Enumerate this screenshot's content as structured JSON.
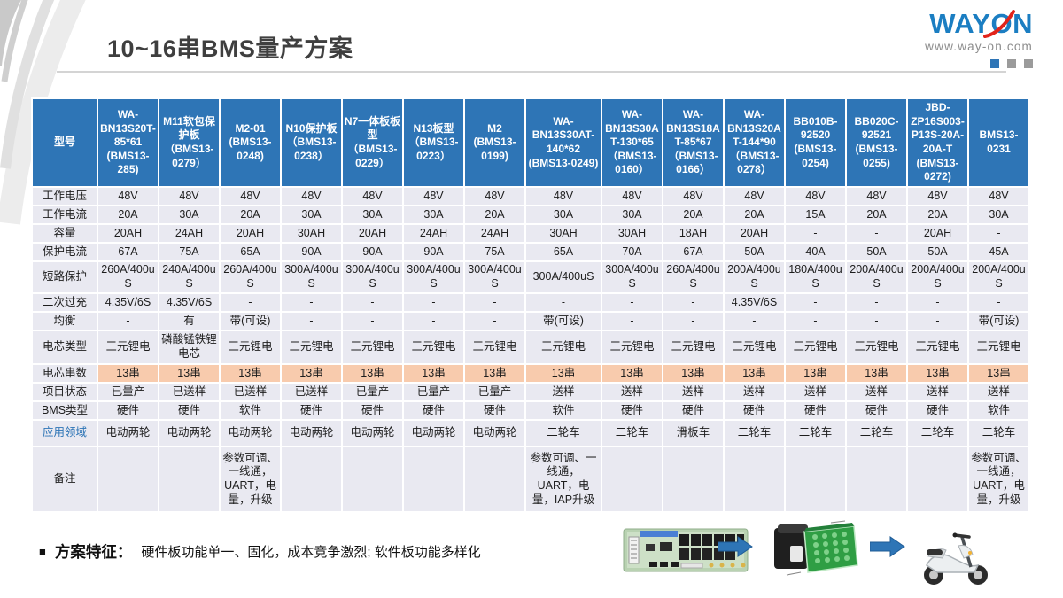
{
  "slide": {
    "title": "10~16串BMS量产方案",
    "logo": {
      "brand": "WAYON",
      "website": "www.way-on.com"
    },
    "feature": {
      "bullet": "■",
      "label": "方案特征：",
      "text": "硬件板功能单一、固化，成本竞争激烈; 软件板功能多样化"
    },
    "flow_items": [
      "bms-pcb-board",
      "battery-pack",
      "electric-scooter"
    ]
  },
  "colors": {
    "header_blue": "#2E75B6",
    "cell_bg": "#E9E9F1",
    "highlight_orange": "#F8CBAD",
    "logo_blue": "#1B7EC2",
    "logo_red": "#E2231A"
  },
  "table": {
    "corner_label": "型号",
    "columns": [
      "WA-BN13S20T-85*61 (BMS13-285)",
      "M11软包保护板（BMS13-0279）",
      "M2-01 (BMS13-0248)",
      "N10保护板（BMS13-0238）",
      "N7一体板板型（BMS13-0229）",
      "N13板型（BMS13-0223）",
      "M2 (BMS13-0199)",
      "WA-BN13S30AT-140*62 (BMS13-0249)",
      "WA-BN13S30AT-130*65（BMS13-0160）",
      "WA-BN13S18AT-85*67（BMS13-0166）",
      "WA-BN13S20AT-144*90（BMS13-0278）",
      "BB010B-92520 (BMS13-0254)",
      "BB020C-92521 (BMS13-0255)",
      "JBD-ZP16S003-P13S-20A-20A-T (BMS13-0272)",
      "BMS13-0231"
    ],
    "rows": [
      {
        "label": "工作电压",
        "values": [
          "48V",
          "48V",
          "48V",
          "48V",
          "48V",
          "48V",
          "48V",
          "48V",
          "48V",
          "48V",
          "48V",
          "48V",
          "48V",
          "48V",
          "48V"
        ]
      },
      {
        "label": "工作电流",
        "values": [
          "20A",
          "30A",
          "20A",
          "30A",
          "30A",
          "30A",
          "20A",
          "30A",
          "30A",
          "20A",
          "20A",
          "15A",
          "20A",
          "20A",
          "30A"
        ]
      },
      {
        "label": "容量",
        "values": [
          "20AH",
          "24AH",
          "20AH",
          "30AH",
          "20AH",
          "24AH",
          "24AH",
          "30AH",
          "30AH",
          "18AH",
          "20AH",
          "-",
          "-",
          "20AH",
          "-"
        ]
      },
      {
        "label": "保护电流",
        "values": [
          "67A",
          "75A",
          "65A",
          "90A",
          "90A",
          "90A",
          "75A",
          "65A",
          "70A",
          "67A",
          "50A",
          "40A",
          "50A",
          "50A",
          "45A"
        ]
      },
      {
        "label": "短路保护",
        "values": [
          "260A/400uS",
          "240A/400uS",
          "260A/400uS",
          "300A/400uS",
          "300A/400uS",
          "300A/400uS",
          "300A/400uS",
          "300A/400uS",
          "300A/400uS",
          "260A/400uS",
          "200A/400uS",
          "180A/400uS",
          "200A/400uS",
          "200A/400uS",
          "200A/400uS"
        ]
      },
      {
        "label": "二次过充",
        "values": [
          "4.35V/6S",
          "4.35V/6S",
          "-",
          "-",
          "-",
          "-",
          "-",
          "-",
          "-",
          "-",
          "4.35V/6S",
          "-",
          "-",
          "-",
          "-"
        ]
      },
      {
        "label": "均衡",
        "values": [
          "-",
          "有",
          "带(可设)",
          "-",
          "-",
          "-",
          "-",
          "带(可设)",
          "-",
          "-",
          "-",
          "-",
          "-",
          "-",
          "带(可设)"
        ]
      },
      {
        "label": "电芯类型",
        "values": [
          "三元锂电",
          "磷酸锰铁锂电芯",
          "三元锂电",
          "三元锂电",
          "三元锂电",
          "三元锂电",
          "三元锂电",
          "三元锂电",
          "三元锂电",
          "三元锂电",
          "三元锂电",
          "三元锂电",
          "三元锂电",
          "三元锂电",
          "三元锂电"
        ]
      },
      {
        "label": "电芯串数",
        "highlight": true,
        "values": [
          "13串",
          "13串",
          "13串",
          "13串",
          "13串",
          "13串",
          "13串",
          "13串",
          "13串",
          "13串",
          "13串",
          "13串",
          "13串",
          "13串",
          "13串"
        ]
      },
      {
        "label": "项目状态",
        "values": [
          "已量产",
          "已送样",
          "已送样",
          "已送样",
          "已量产",
          "已量产",
          "已量产",
          "送样",
          "送样",
          "送样",
          "送样",
          "送样",
          "送样",
          "送样",
          "送样"
        ]
      },
      {
        "label": "BMS类型",
        "values": [
          "硬件",
          "硬件",
          "软件",
          "硬件",
          "硬件",
          "硬件",
          "硬件",
          "软件",
          "硬件",
          "硬件",
          "硬件",
          "硬件",
          "硬件",
          "硬件",
          "软件"
        ]
      },
      {
        "label": "应用领域",
        "label_blue": true,
        "values": [
          "电动两轮",
          "电动两轮",
          "电动两轮",
          "电动两轮",
          "电动两轮",
          "电动两轮",
          "电动两轮",
          "二轮车",
          "二轮车",
          "滑板车",
          "二轮车",
          "二轮车",
          "二轮车",
          "二轮车",
          "二轮车"
        ]
      },
      {
        "label": "备注",
        "values": [
          "",
          "",
          "参数可调、一线通，UART，电量，升级",
          "",
          "",
          "",
          "",
          "参数可调、一线通，UART，电量，IAP升级",
          "",
          "",
          "",
          "",
          "",
          "",
          "参数可调、一线通，UART，电量，升级"
        ]
      }
    ]
  }
}
